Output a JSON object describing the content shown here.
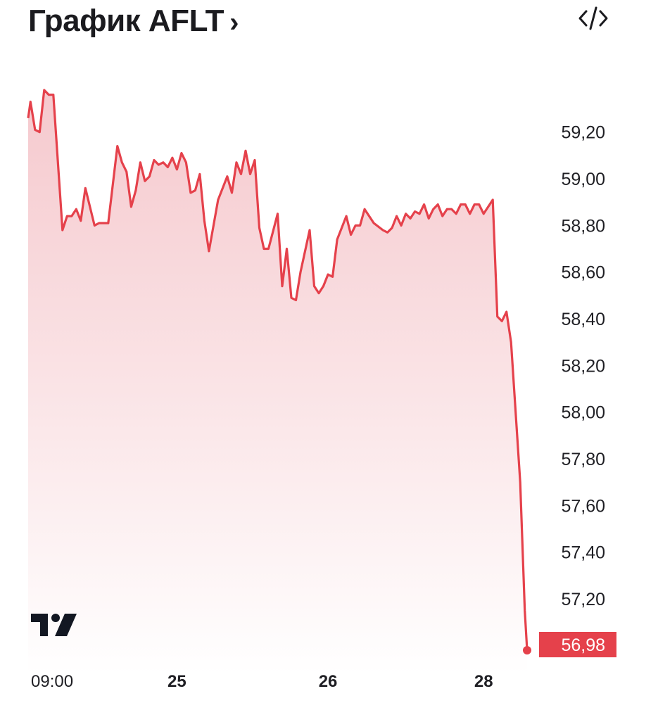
{
  "header": {
    "title": "График AFLT",
    "chevron": "›",
    "embed_icon": "code-icon"
  },
  "logo": {
    "name": "tradingview-logo"
  },
  "colors": {
    "line": "#e5414b",
    "fill_top": "#f5c6cb",
    "fill_bottom": "#ffffff",
    "last_price_bg": "#e5414b",
    "text": "#1f1f24"
  },
  "chart_data": {
    "type": "area",
    "y_ticks": [
      "59,20",
      "59,00",
      "58,80",
      "58,60",
      "58,40",
      "58,20",
      "58,00",
      "57,80",
      "57,60",
      "57,40",
      "57,20"
    ],
    "y_tick_values": [
      59.2,
      59.0,
      58.8,
      58.6,
      58.4,
      58.2,
      58.0,
      57.8,
      57.6,
      57.4,
      57.2
    ],
    "x_ticks": [
      {
        "label": "09:00",
        "bold": false,
        "x": 0.5
      },
      {
        "label": "25",
        "bold": true,
        "x": 32.5
      },
      {
        "label": "26",
        "bold": true,
        "x": 65.5
      },
      {
        "label": "28",
        "bold": true,
        "x": 99.5
      }
    ],
    "ylim": [
      56.98,
      59.38
    ],
    "xlim": [
      0,
      109
    ],
    "grid": false,
    "last_price": 56.98,
    "last_price_label": "56,98",
    "series": [
      {
        "points": [
          [
            0,
            59.26
          ],
          [
            0.5,
            59.33
          ],
          [
            1.5,
            59.21
          ],
          [
            2.5,
            59.2
          ],
          [
            3.5,
            59.38
          ],
          [
            4.5,
            59.36
          ],
          [
            5.5,
            59.36
          ],
          [
            7.5,
            58.78
          ],
          [
            8.5,
            58.84
          ],
          [
            9.5,
            58.84
          ],
          [
            10.5,
            58.87
          ],
          [
            11.5,
            58.82
          ],
          [
            12.5,
            58.96
          ],
          [
            14.5,
            58.8
          ],
          [
            15.5,
            58.81
          ],
          [
            17.5,
            58.81
          ],
          [
            19.5,
            59.14
          ],
          [
            20.5,
            59.07
          ],
          [
            21.5,
            59.03
          ],
          [
            22.5,
            58.88
          ],
          [
            23.5,
            58.95
          ],
          [
            24.5,
            59.07
          ],
          [
            25.5,
            58.99
          ],
          [
            26.5,
            59.01
          ],
          [
            27.5,
            59.08
          ],
          [
            28.5,
            59.06
          ],
          [
            29.5,
            59.07
          ],
          [
            30.5,
            59.05
          ],
          [
            31.5,
            59.09
          ],
          [
            32.5,
            59.04
          ],
          [
            33.5,
            59.11
          ],
          [
            34.5,
            59.07
          ],
          [
            35.5,
            58.94
          ],
          [
            36.5,
            58.95
          ],
          [
            37.5,
            59.02
          ],
          [
            38.5,
            58.82
          ],
          [
            39.5,
            58.69
          ],
          [
            41.5,
            58.91
          ],
          [
            43.5,
            59.01
          ],
          [
            44.5,
            58.94
          ],
          [
            45.5,
            59.07
          ],
          [
            46.5,
            59.02
          ],
          [
            47.5,
            59.12
          ],
          [
            48.5,
            59.02
          ],
          [
            49.5,
            59.08
          ],
          [
            50.5,
            58.79
          ],
          [
            51.5,
            58.7
          ],
          [
            52.5,
            58.7
          ],
          [
            54.5,
            58.85
          ],
          [
            55.5,
            58.54
          ],
          [
            56.5,
            58.7
          ],
          [
            57.5,
            58.49
          ],
          [
            58.5,
            58.48
          ],
          [
            59.5,
            58.6
          ],
          [
            61.5,
            58.78
          ],
          [
            62.5,
            58.54
          ],
          [
            63.5,
            58.51
          ],
          [
            64.5,
            58.54
          ],
          [
            65.5,
            58.59
          ],
          [
            66.5,
            58.58
          ],
          [
            67.5,
            58.74
          ],
          [
            69.5,
            58.84
          ],
          [
            70.5,
            58.76
          ],
          [
            71.5,
            58.8
          ],
          [
            72.5,
            58.8
          ],
          [
            73.5,
            58.87
          ],
          [
            74.5,
            58.84
          ],
          [
            75.5,
            58.81
          ],
          [
            77.5,
            58.78
          ],
          [
            78.5,
            58.77
          ],
          [
            79.5,
            58.79
          ],
          [
            80.5,
            58.84
          ],
          [
            81.5,
            58.8
          ],
          [
            82.5,
            58.85
          ],
          [
            83.5,
            58.83
          ],
          [
            84.5,
            58.86
          ],
          [
            85.5,
            58.85
          ],
          [
            86.5,
            58.89
          ],
          [
            87.5,
            58.83
          ],
          [
            88.5,
            58.87
          ],
          [
            89.5,
            58.89
          ],
          [
            90.5,
            58.84
          ],
          [
            91.5,
            58.87
          ],
          [
            92.5,
            58.87
          ],
          [
            93.5,
            58.85
          ],
          [
            94.5,
            58.89
          ],
          [
            95.5,
            58.89
          ],
          [
            96.5,
            58.85
          ],
          [
            97.5,
            58.89
          ],
          [
            98.5,
            58.89
          ],
          [
            99.5,
            58.85
          ],
          [
            101.5,
            58.91
          ],
          [
            102.5,
            58.41
          ],
          [
            103.5,
            58.39
          ],
          [
            104.5,
            58.43
          ],
          [
            105.5,
            58.3
          ],
          [
            107.5,
            57.7
          ],
          [
            108.5,
            57.15
          ],
          [
            109,
            56.98
          ]
        ]
      }
    ]
  }
}
